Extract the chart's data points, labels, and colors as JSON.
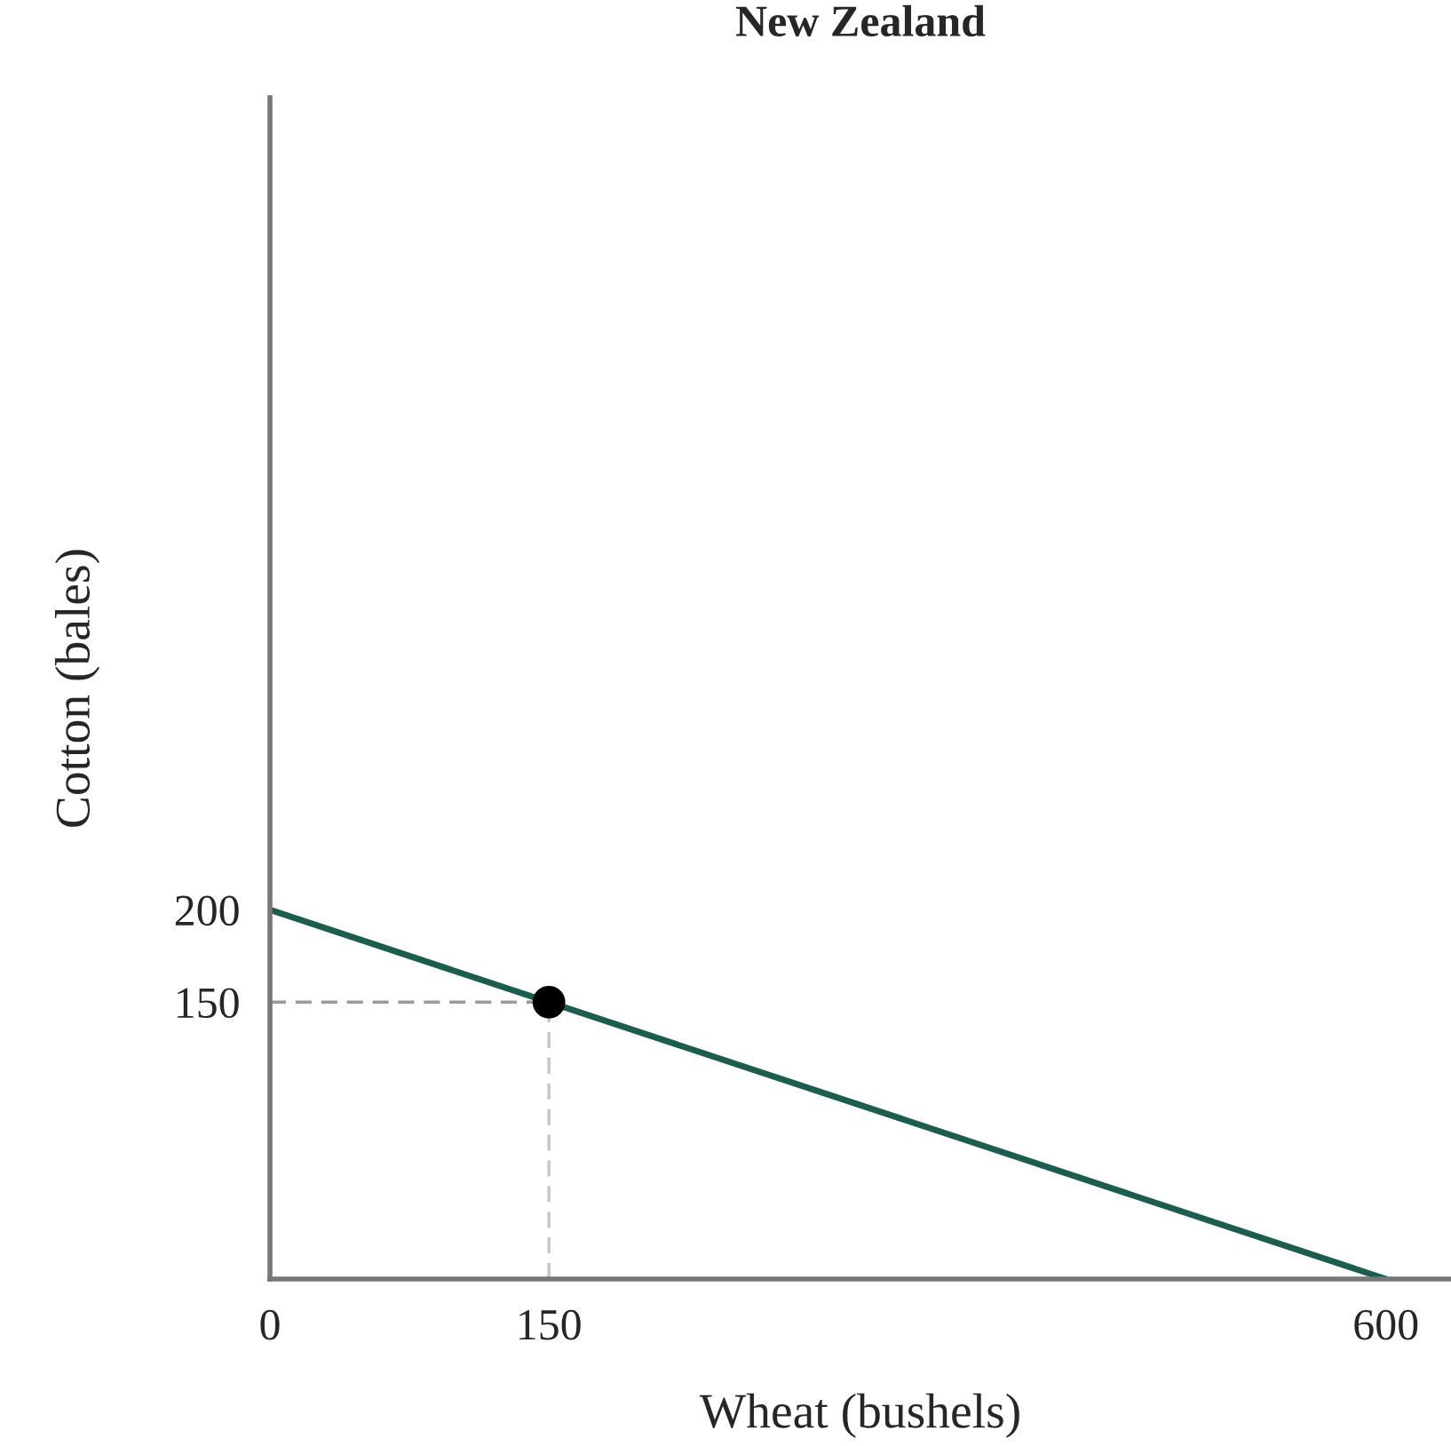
{
  "chart_data": {
    "type": "line",
    "title": "New Zealand",
    "xlabel": "Wheat (bushels)",
    "ylabel": "Cotton (bales)",
    "xlim": [
      0,
      635
    ],
    "ylim": [
      0,
      640
    ],
    "xticks": [
      0,
      150,
      600
    ],
    "yticks": [
      150,
      200
    ],
    "grid": false,
    "series": [
      {
        "x": [
          0,
          600
        ],
        "values": [
          200,
          0
        ],
        "color": "#1b5e50",
        "line_style": "solid",
        "marker": "none"
      },
      {
        "x": [
          0,
          150
        ],
        "values": [
          150,
          150
        ],
        "color": "#9a9a9a",
        "line_style": "dashed",
        "marker": "none"
      },
      {
        "x": [
          150,
          150
        ],
        "values": [
          0,
          150
        ],
        "color": "#c8c8c8",
        "line_style": "dashed",
        "marker": "none"
      },
      {
        "type": "scatter",
        "x": [
          150
        ],
        "values": [
          150
        ],
        "color": "#000000",
        "marker": "circle"
      }
    ]
  }
}
